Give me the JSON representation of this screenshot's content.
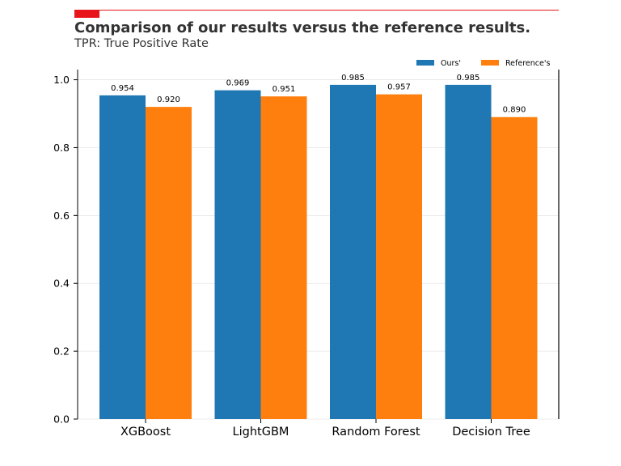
{
  "colors": {
    "accent": "#e8141b",
    "ours": "#1f77b4",
    "reference": "#ff7f0e",
    "title_text": "#333333"
  },
  "chart_data": {
    "type": "bar",
    "title": "Comparison of our results versus the reference results.",
    "subtitle": "TPR: True Positive Rate",
    "categories": [
      "XGBoost",
      "LightGBM",
      "Random Forest",
      "Decision Tree"
    ],
    "series": [
      {
        "name": "Ours'",
        "values": [
          0.954,
          0.969,
          0.985,
          0.985
        ],
        "labels": [
          "0.954",
          "0.969",
          "0.985",
          "0.985"
        ]
      },
      {
        "name": "Reference's",
        "values": [
          0.92,
          0.951,
          0.957,
          0.89
        ],
        "labels": [
          "0.920",
          "0.951",
          "0.957",
          "0.890"
        ]
      }
    ],
    "xlabel": "",
    "ylabel": "",
    "ylim": [
      0,
      1.03
    ],
    "yticks": [
      0.0,
      0.2,
      0.4,
      0.6,
      0.8,
      1.0
    ],
    "ytick_labels": [
      "0.0",
      "0.2",
      "0.4",
      "0.6",
      "0.8",
      "1.0"
    ],
    "grid": true,
    "legend_position": "top-right"
  }
}
